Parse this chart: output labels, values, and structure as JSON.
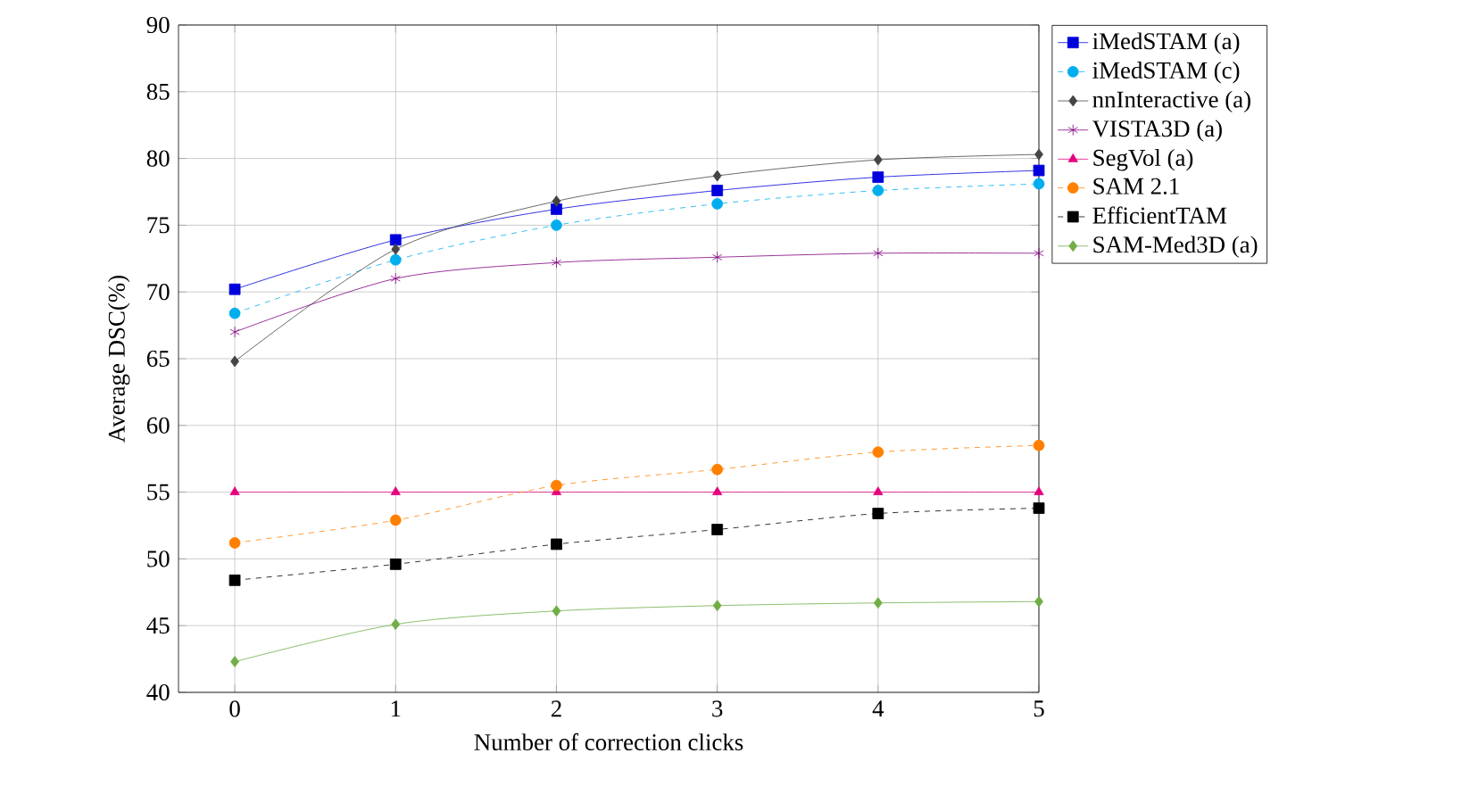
{
  "chart_data": {
    "type": "line",
    "xlabel": "Number of correction clicks",
    "ylabel": "Average DSC(%)",
    "x": [
      0,
      1,
      2,
      3,
      4,
      5
    ],
    "xlim": [
      -0.35,
      5.0
    ],
    "xticks": [
      0,
      1,
      2,
      3,
      4,
      5
    ],
    "ylim": [
      40,
      90
    ],
    "yticks": [
      40,
      45,
      50,
      55,
      60,
      65,
      70,
      75,
      80,
      85,
      90
    ],
    "grid": true,
    "legend": "right",
    "series": [
      {
        "name": "iMedSTAM (a)",
        "color": "#0000dd",
        "marker": "square",
        "line_style": "solid",
        "values": [
          70.2,
          73.9,
          76.2,
          77.6,
          78.6,
          79.1
        ]
      },
      {
        "name": "iMedSTAM (c)",
        "color": "#00aeef",
        "marker": "circle",
        "line_style": "dashed",
        "values": [
          68.4,
          72.4,
          75.0,
          76.6,
          77.6,
          78.1
        ]
      },
      {
        "name": "nnInteractive (a)",
        "color": "#444444",
        "marker": "diamond",
        "line_style": "solid",
        "values": [
          64.8,
          73.2,
          76.8,
          78.7,
          79.9,
          80.3
        ]
      },
      {
        "name": "VISTA3D (a)",
        "color": "#800080",
        "marker": "cross",
        "line_style": "solid",
        "values": [
          67.0,
          71.0,
          72.2,
          72.6,
          72.9,
          72.9
        ]
      },
      {
        "name": "SegVol (a)",
        "color": "#e6007e",
        "marker": "triangle",
        "line_style": "solid",
        "values": [
          55.0,
          55.0,
          55.0,
          55.0,
          55.0,
          55.0
        ]
      },
      {
        "name": "SAM 2.1",
        "color": "#ff8000",
        "marker": "circle",
        "line_style": "dashed",
        "values": [
          51.2,
          52.9,
          55.5,
          56.7,
          58.0,
          58.5
        ]
      },
      {
        "name": "EfficientTAM",
        "color": "#000000",
        "marker": "square",
        "line_style": "dashed",
        "values": [
          48.4,
          49.6,
          51.1,
          52.2,
          53.4,
          53.8
        ]
      },
      {
        "name": "SAM-Med3D (a)",
        "color": "#70ad47",
        "marker": "diamond",
        "line_style": "solid",
        "values": [
          42.3,
          45.1,
          46.1,
          46.5,
          46.7,
          46.8
        ]
      }
    ]
  }
}
